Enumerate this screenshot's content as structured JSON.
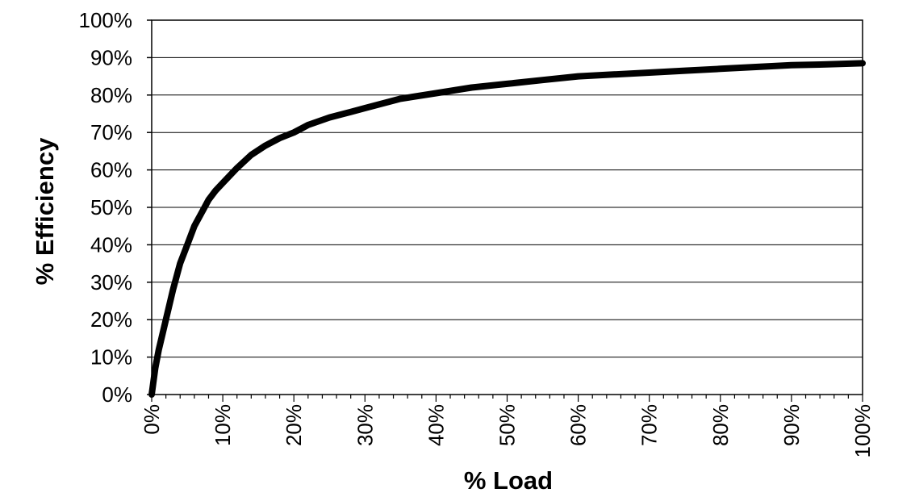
{
  "chart_data": {
    "type": "line",
    "title": "",
    "xlabel": "% Load",
    "ylabel": "% Efficiency",
    "xlim": [
      0,
      100
    ],
    "ylim": [
      0,
      100
    ],
    "grid": "horizontal",
    "legend": "none",
    "x_ticks": [
      "0%",
      "10%",
      "20%",
      "30%",
      "40%",
      "50%",
      "60%",
      "70%",
      "80%",
      "90%",
      "100%"
    ],
    "y_ticks": [
      "0%",
      "10%",
      "20%",
      "30%",
      "40%",
      "50%",
      "60%",
      "70%",
      "80%",
      "90%",
      "100%"
    ],
    "series": [
      {
        "color": "#000000",
        "x": [
          0,
          0.5,
          1,
          1.5,
          2,
          3,
          4,
          5,
          6,
          7,
          8,
          9,
          10,
          12,
          14,
          16,
          18,
          20,
          22,
          25,
          28,
          30,
          35,
          40,
          45,
          50,
          55,
          60,
          65,
          70,
          75,
          80,
          85,
          90,
          95,
          100
        ],
        "y": [
          0,
          7,
          12,
          16,
          20,
          28,
          35,
          40,
          45,
          48.5,
          52,
          54.5,
          56.5,
          60.5,
          64,
          66.5,
          68.5,
          70,
          72,
          74,
          75.5,
          76.5,
          79,
          80.5,
          82,
          83,
          84,
          85,
          85.5,
          86,
          86.5,
          87,
          87.5,
          88,
          88.2,
          88.5
        ]
      }
    ]
  }
}
